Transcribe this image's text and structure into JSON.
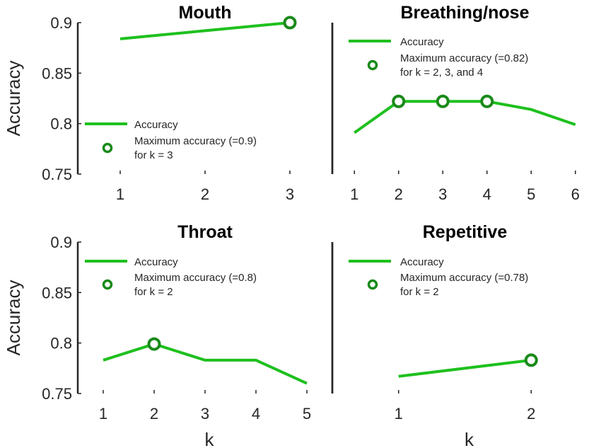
{
  "colors": {
    "series": "#1ec01e",
    "marker": "#1a8a1a",
    "axis": "#262626"
  },
  "chart_data": [
    {
      "type": "line",
      "title": "Mouth",
      "ylabel": "Accuracy",
      "xlabel": "",
      "ylim": [
        0.75,
        0.9
      ],
      "yticks": [
        "0.75",
        "0.8",
        "0.85",
        "0.9"
      ],
      "xticks": [
        "1",
        "2",
        "3"
      ],
      "x": [
        1,
        2,
        3
      ],
      "series": [
        {
          "name": "Accuracy",
          "values": [
            0.884,
            0.892,
            0.9
          ]
        }
      ],
      "max_point": {
        "x": 3,
        "y": 0.9
      },
      "legend": {
        "line": "Accuracy",
        "marker": "Maximum accuracy (=0.9)",
        "marker_sub": "for k = 3",
        "placement": "bottom-left"
      }
    },
    {
      "type": "line",
      "title": "Breathing/nose",
      "ylabel": "",
      "xlabel": "",
      "ylim": [
        0.75,
        0.9
      ],
      "yticks": [],
      "xticks": [
        "1",
        "2",
        "3",
        "4",
        "5",
        "6"
      ],
      "x": [
        1,
        2,
        3,
        4,
        5,
        6
      ],
      "series": [
        {
          "name": "Accuracy",
          "values": [
            0.791,
            0.822,
            0.822,
            0.822,
            0.814,
            0.799
          ]
        }
      ],
      "max_point": {
        "x": [
          2,
          3,
          4
        ],
        "y": 0.822
      },
      "legend": {
        "line": "Accuracy",
        "marker": "Maximum accuracy (=0.82)",
        "marker_sub": "for k = 2, 3, and 4",
        "placement": "top-left"
      }
    },
    {
      "type": "line",
      "title": "Throat",
      "ylabel": "Accuracy",
      "xlabel": "k",
      "ylim": [
        0.75,
        0.9
      ],
      "yticks": [
        "0.75",
        "0.8",
        "0.85",
        "0.9"
      ],
      "xticks": [
        "1",
        "2",
        "3",
        "4",
        "5"
      ],
      "x": [
        1,
        2,
        3,
        4,
        5
      ],
      "series": [
        {
          "name": "Accuracy",
          "values": [
            0.783,
            0.799,
            0.783,
            0.783,
            0.76
          ]
        }
      ],
      "max_point": {
        "x": 2,
        "y": 0.799
      },
      "legend": {
        "line": "Accuracy",
        "marker": "Maximum accuracy (=0.8)",
        "marker_sub": "for k = 2",
        "placement": "top-left"
      }
    },
    {
      "type": "line",
      "title": "Repetitive",
      "ylabel": "",
      "xlabel": "k",
      "ylim": [
        0.75,
        0.9
      ],
      "yticks": [],
      "xticks": [
        "1",
        "2"
      ],
      "x": [
        1,
        2
      ],
      "series": [
        {
          "name": "Accuracy",
          "values": [
            0.767,
            0.783
          ]
        }
      ],
      "max_point": {
        "x": 2,
        "y": 0.783
      },
      "legend": {
        "line": "Accuracy",
        "marker": "Maximum accuracy (=0.78)",
        "marker_sub": "for k = 2",
        "placement": "top-left"
      }
    }
  ]
}
